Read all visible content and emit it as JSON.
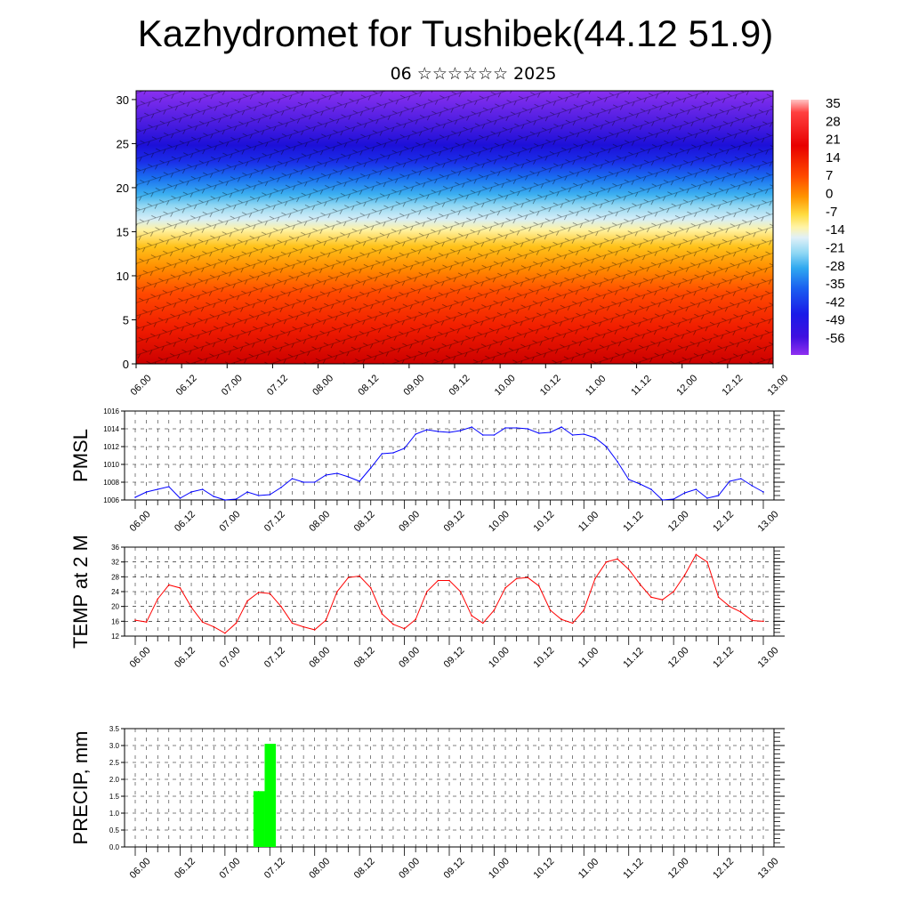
{
  "title": "Kazhydromet for Tushibek(44.12 51.9)",
  "subtitle": "06 ☆☆☆☆☆☆ 2025",
  "x_tick_labels": [
    "06.00",
    "06.12",
    "07.00",
    "07.12",
    "08.00",
    "08.12",
    "09.00",
    "09.12",
    "10.00",
    "10.12",
    "11.00",
    "11.12",
    "12.00",
    "12.12",
    "13.00"
  ],
  "chart_data": [
    {
      "type": "heatmap",
      "title": "",
      "xlabel": "",
      "ylabel": "",
      "x_categories": [
        "06.00",
        "06.12",
        "07.00",
        "07.12",
        "08.00",
        "08.12",
        "09.00",
        "09.12",
        "10.00",
        "10.12",
        "11.00",
        "11.12",
        "12.00",
        "12.12",
        "13.00"
      ],
      "ylim": [
        0,
        31
      ],
      "y_ticks": [
        0,
        5,
        10,
        15,
        20,
        25,
        30
      ],
      "colorbar": {
        "labels": [
          "35",
          "28",
          "21",
          "14",
          "7",
          "0",
          "-7",
          "-14",
          "-21",
          "-28",
          "-35",
          "-42",
          "-49",
          "-56"
        ],
        "range": [
          -60,
          40
        ]
      },
      "vertical_profile": [
        {
          "level": 0,
          "value": 34
        },
        {
          "level": 4,
          "value": 28
        },
        {
          "level": 8,
          "value": 20
        },
        {
          "level": 11,
          "value": 12
        },
        {
          "level": 14,
          "value": 0
        },
        {
          "level": 16,
          "value": -12
        },
        {
          "level": 18,
          "value": -30
        },
        {
          "level": 21,
          "value": -48
        },
        {
          "level": 24,
          "value": -60
        },
        {
          "level": 27,
          "value": -52
        },
        {
          "level": 31,
          "value": -40
        }
      ],
      "overlay": "wind streamlines"
    },
    {
      "type": "line",
      "ylabel": "PMSL",
      "x_categories": [
        "06.00",
        "06.12",
        "07.00",
        "07.12",
        "08.00",
        "08.12",
        "09.00",
        "09.12",
        "10.00",
        "10.12",
        "11.00",
        "11.12",
        "12.00",
        "12.12",
        "13.00"
      ],
      "ylim": [
        1006,
        1016
      ],
      "y_ticks": [
        1006,
        1008,
        1010,
        1012,
        1014,
        1016
      ],
      "grid": true,
      "color": "#0000ff",
      "series": [
        {
          "x": [
            0,
            1,
            2,
            3,
            4,
            5,
            6,
            7,
            8,
            9,
            10,
            11,
            12,
            13,
            14,
            15,
            16,
            17,
            18,
            19,
            20,
            21,
            22,
            23,
            24,
            25,
            26,
            27,
            28,
            29,
            30,
            31,
            32,
            33,
            34,
            35,
            36,
            37,
            38,
            39,
            40,
            41,
            42,
            43,
            44,
            45,
            46,
            47,
            48,
            49,
            50,
            51,
            52,
            53,
            54,
            55,
            56
          ],
          "values": [
            1006.3,
            1006.9,
            1007.2,
            1007.5,
            1006.2,
            1006.9,
            1007.2,
            1006.4,
            1006.0,
            1006.1,
            1006.9,
            1006.5,
            1006.6,
            1007.4,
            1008.4,
            1008.0,
            1008.0,
            1008.8,
            1009.0,
            1008.6,
            1008.1,
            1009.6,
            1011.2,
            1011.3,
            1011.8,
            1013.4,
            1013.9,
            1013.7,
            1013.6,
            1013.8,
            1014.2,
            1013.3,
            1013.3,
            1014.1,
            1014.1,
            1014.0,
            1013.5,
            1013.6,
            1014.2,
            1013.3,
            1013.4,
            1013.0,
            1012.0,
            1010.3,
            1008.3,
            1007.8,
            1007.2,
            1006.0,
            1006.1,
            1006.8,
            1007.2,
            1006.2,
            1006.5,
            1008.1,
            1008.4,
            1007.6,
            1006.9
          ]
        }
      ]
    },
    {
      "type": "line",
      "ylabel": "TEMP at 2 M",
      "x_categories": [
        "06.00",
        "06.12",
        "07.00",
        "07.12",
        "08.00",
        "08.12",
        "09.00",
        "09.12",
        "10.00",
        "10.12",
        "11.00",
        "11.12",
        "12.00",
        "12.12",
        "13.00"
      ],
      "ylim": [
        12,
        36
      ],
      "y_ticks": [
        12,
        16,
        20,
        24,
        28,
        32,
        36
      ],
      "grid": true,
      "color": "#ff0000",
      "series": [
        {
          "x": [
            0,
            1,
            2,
            3,
            4,
            5,
            6,
            7,
            8,
            9,
            10,
            11,
            12,
            13,
            14,
            15,
            16,
            17,
            18,
            19,
            20,
            21,
            22,
            23,
            24,
            25,
            26,
            27,
            28,
            29,
            30,
            31,
            32,
            33,
            34,
            35,
            36,
            37,
            38,
            39,
            40,
            41,
            42,
            43,
            44,
            45,
            46,
            47,
            48,
            49,
            50,
            51,
            52,
            53,
            54,
            55,
            56
          ],
          "values": [
            16.3,
            15.8,
            22.0,
            25.8,
            25.0,
            19.8,
            15.8,
            14.5,
            12.8,
            15.5,
            21.5,
            23.8,
            23.5,
            20.0,
            15.5,
            14.5,
            13.7,
            16.3,
            24.0,
            27.8,
            28.2,
            25.0,
            18.0,
            15.2,
            14.0,
            16.5,
            24.0,
            27.0,
            27.0,
            24.0,
            17.5,
            15.5,
            19.0,
            25.0,
            27.5,
            27.8,
            25.5,
            19.0,
            16.5,
            15.5,
            19.0,
            27.5,
            32.0,
            32.8,
            30.0,
            26.0,
            22.5,
            21.8,
            24.0,
            28.5,
            34.0,
            32.0,
            22.5,
            20.0,
            18.5,
            16.2,
            16.0
          ]
        }
      ]
    },
    {
      "type": "bar",
      "ylabel": "PRECIP, mm",
      "x_categories": [
        "06.00",
        "06.12",
        "07.00",
        "07.12",
        "08.00",
        "08.12",
        "09.00",
        "09.12",
        "10.00",
        "10.12",
        "11.00",
        "11.12",
        "12.00",
        "12.12",
        "13.00"
      ],
      "ylim": [
        0,
        3.5
      ],
      "y_ticks": [
        "0.0",
        "0.5",
        "1.0",
        "1.5",
        "2.0",
        "2.5",
        "3.0",
        "3.5"
      ],
      "grid": true,
      "color": "#00ff00",
      "bars": [
        {
          "x": 11,
          "value": 1.65
        },
        {
          "x": 12,
          "value": 3.05
        }
      ]
    }
  ]
}
